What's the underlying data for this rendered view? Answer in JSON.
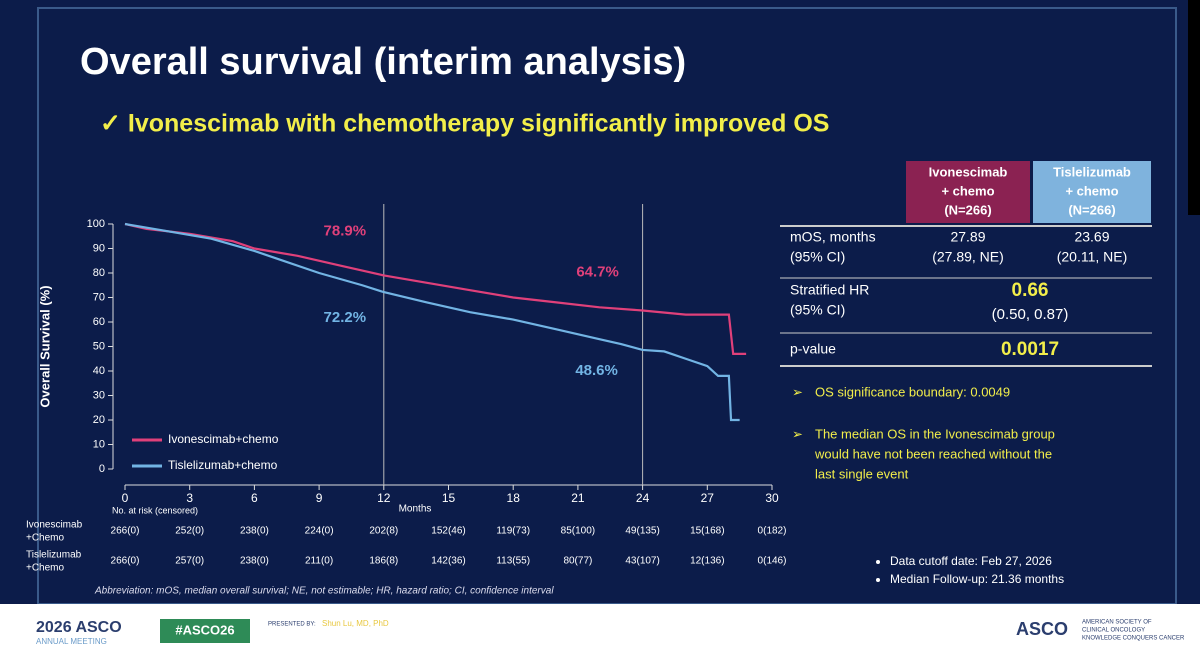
{
  "slide": {
    "title": "Overall survival (interim analysis)",
    "subtitle": "✓ Ivonescimab with chemotherapy significantly improved OS"
  },
  "chart_data": {
    "type": "line",
    "y_label": "Overall Survival (%)",
    "x_label": "Months",
    "xlim": [
      0,
      30
    ],
    "xticks": [
      0,
      3,
      6,
      9,
      12,
      15,
      18,
      21,
      24,
      27,
      30
    ],
    "ylim": [
      0,
      100
    ],
    "yticks": [
      0,
      10,
      20,
      30,
      40,
      50,
      60,
      70,
      80,
      90,
      100
    ],
    "reference_x": [
      12,
      24
    ],
    "legend": "lower left",
    "series": [
      {
        "name": "Ivonescimab+chemo",
        "color": "#e0407a",
        "x": [
          0,
          1,
          3,
          5,
          6,
          8,
          10,
          12,
          14,
          16,
          18,
          20,
          22,
          24,
          26,
          28,
          28.2,
          28.8
        ],
        "values": [
          100,
          98,
          96,
          93,
          90,
          87,
          83,
          79,
          76,
          73,
          70,
          68,
          66,
          64.7,
          63,
          63,
          47,
          47
        ]
      },
      {
        "name": "Tislelizumab+chemo",
        "color": "#72b4e4",
        "x": [
          0,
          2,
          4,
          6,
          7,
          9,
          11,
          12,
          14,
          16,
          18,
          20,
          22,
          23,
          24,
          25,
          26,
          27,
          27.5,
          28,
          28.1,
          28.5
        ],
        "values": [
          100,
          97,
          94,
          89,
          86,
          80,
          75,
          72.2,
          68,
          64,
          61,
          57,
          53,
          51,
          48.6,
          48,
          45,
          42,
          38,
          38,
          20,
          20
        ]
      }
    ],
    "annotations": [
      {
        "series": 0,
        "x": 12,
        "value": 78.9,
        "label": "78.9%"
      },
      {
        "series": 0,
        "x": 24,
        "value": 64.7,
        "label": "64.7%"
      },
      {
        "series": 1,
        "x": 12,
        "value": 72.2,
        "label": "72.2%"
      },
      {
        "series": 1,
        "x": 24,
        "value": 48.6,
        "label": "48.6%"
      }
    ],
    "risk_table": {
      "title": "No. at risk (censored)",
      "rows": [
        {
          "label": [
            "Ivonescimab",
            "+Chemo"
          ],
          "values": [
            "266(0)",
            "252(0)",
            "238(0)",
            "224(0)",
            "202(8)",
            "152(46)",
            "119(73)",
            "85(100)",
            "49(135)",
            "15(168)",
            "0(182)"
          ]
        },
        {
          "label": [
            "Tislelizumab",
            "+Chemo"
          ],
          "values": [
            "266(0)",
            "257(0)",
            "238(0)",
            "211(0)",
            "186(8)",
            "142(36)",
            "113(55)",
            "80(77)",
            "43(107)",
            "12(136)",
            "0(146)"
          ]
        }
      ]
    }
  },
  "table": {
    "headers": [
      [
        "Ivonescimab",
        "+ chemo",
        "(N=266)"
      ],
      [
        "Tislelizumab",
        "+ chemo",
        "(N=266)"
      ]
    ],
    "rows": [
      {
        "label": [
          "mOS, months",
          "(95% CI)"
        ],
        "cells": [
          [
            "27.89",
            "(27.89, NE)"
          ],
          [
            "23.69",
            "(20.11, NE)"
          ]
        ]
      },
      {
        "label": [
          "Stratified HR",
          "(95% CI)"
        ],
        "merged": [
          "0.66",
          "(0.50, 0.87)"
        ]
      },
      {
        "label": [
          "p-value"
        ],
        "merged": [
          "0.0017"
        ]
      }
    ]
  },
  "bullets": [
    [
      "➢",
      "OS significance boundary: 0.0049"
    ],
    [
      "➢",
      "The median OS in the Ivonescimab group",
      "would have not been reached without the",
      "last single event"
    ]
  ],
  "notes": [
    "Data cutoff date: Feb 27, 2026",
    "Median Follow-up: 21.36 months"
  ],
  "footnote": "Abbreviation:  mOS, median overall survival; NE, not estimable; HR, hazard ratio; CI, confidence interval",
  "footer": {
    "meeting": [
      "2026 ASCO",
      "ANNUAL MEETING"
    ],
    "hashtag": "#ASCO26",
    "presenter": [
      "PRESENTED BY:",
      "Shun Lu, MD, PhD"
    ],
    "society": [
      "ASCO",
      "AMERICAN SOCIETY OF",
      "CLINICAL ONCOLOGY",
      "KNOWLEDGE CONQUERS CANCER"
    ]
  }
}
